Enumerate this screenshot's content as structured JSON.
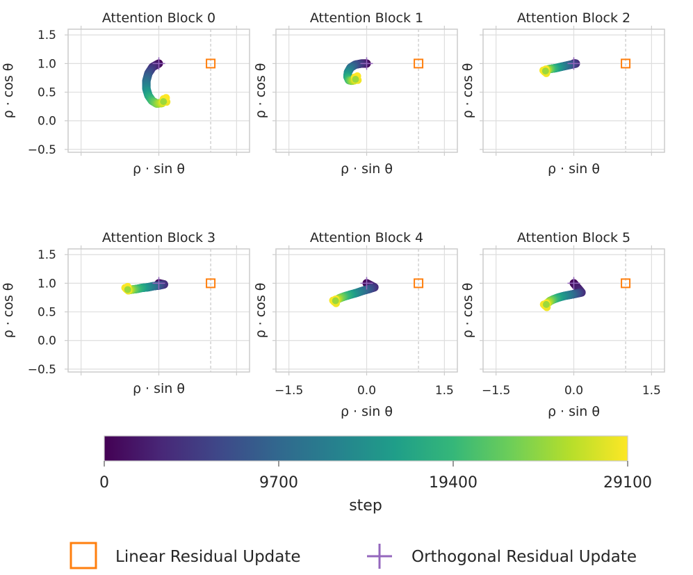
{
  "chart_data": {
    "type": "scatter",
    "figure_layout": "2x3 grid of subplots sharing axes",
    "xlabel": "ρ · sin θ",
    "ylabel": "ρ · cos θ",
    "xlim": [
      -1.75,
      1.75
    ],
    "ylim": [
      -0.55,
      1.6
    ],
    "xticks": [
      -1.5,
      0.0,
      1.5
    ],
    "xtick_labels": [
      "−1.5",
      "0.0",
      "1.5"
    ],
    "yticks": [
      -0.5,
      0.0,
      0.5,
      1.0,
      1.5
    ],
    "ytick_labels": [
      "−0.5",
      "0.0",
      "0.5",
      "1.0",
      "1.5"
    ],
    "grid": true,
    "reference_line_x": 1.0,
    "panels": [
      {
        "title": "Attention Block 0",
        "show_xticks": false,
        "show_yticks": true,
        "trajectory": [
          [
            0.0,
            1.0
          ],
          [
            -0.12,
            0.94
          ],
          [
            -0.2,
            0.83
          ],
          [
            -0.24,
            0.7
          ],
          [
            -0.24,
            0.56
          ],
          [
            -0.2,
            0.44
          ],
          [
            -0.13,
            0.35
          ],
          [
            -0.04,
            0.3
          ],
          [
            0.06,
            0.31
          ],
          [
            0.12,
            0.36
          ]
        ]
      },
      {
        "title": "Attention Block 1",
        "show_xticks": false,
        "show_yticks": false,
        "trajectory": [
          [
            0.0,
            1.0
          ],
          [
            -0.1,
            1.0
          ],
          [
            -0.22,
            0.98
          ],
          [
            -0.31,
            0.93
          ],
          [
            -0.36,
            0.85
          ],
          [
            -0.37,
            0.77
          ],
          [
            -0.34,
            0.71
          ],
          [
            -0.29,
            0.7
          ],
          [
            -0.23,
            0.71
          ],
          [
            -0.2,
            0.74
          ]
        ]
      },
      {
        "title": "Attention Block 2",
        "show_xticks": false,
        "show_yticks": false,
        "trajectory": [
          [
            0.0,
            1.0
          ],
          [
            0.04,
            1.0
          ],
          [
            -0.06,
            0.98
          ],
          [
            -0.16,
            0.96
          ],
          [
            -0.26,
            0.94
          ],
          [
            -0.35,
            0.92
          ],
          [
            -0.43,
            0.91
          ],
          [
            -0.49,
            0.9
          ],
          [
            -0.53,
            0.88
          ],
          [
            -0.56,
            0.86
          ]
        ]
      },
      {
        "title": "Attention Block 3",
        "show_xticks": false,
        "show_yticks": true,
        "trajectory": [
          [
            0.0,
            1.0
          ],
          [
            0.1,
            0.98
          ],
          [
            0.0,
            0.96
          ],
          [
            -0.1,
            0.95
          ],
          [
            -0.21,
            0.93
          ],
          [
            -0.32,
            0.92
          ],
          [
            -0.43,
            0.9
          ],
          [
            -0.52,
            0.89
          ],
          [
            -0.58,
            0.88
          ],
          [
            -0.62,
            0.9
          ]
        ]
      },
      {
        "title": "Attention Block 4",
        "show_xticks": true,
        "show_yticks": false,
        "trajectory": [
          [
            0.0,
            1.0
          ],
          [
            0.15,
            0.93
          ],
          [
            0.05,
            0.9
          ],
          [
            -0.07,
            0.87
          ],
          [
            -0.2,
            0.83
          ],
          [
            -0.32,
            0.8
          ],
          [
            -0.43,
            0.77
          ],
          [
            -0.52,
            0.74
          ],
          [
            -0.58,
            0.71
          ],
          [
            -0.62,
            0.68
          ]
        ]
      },
      {
        "title": "Attention Block 5",
        "show_xticks": true,
        "show_yticks": false,
        "trajectory": [
          [
            0.0,
            1.0
          ],
          [
            0.15,
            0.84
          ],
          [
            0.05,
            0.82
          ],
          [
            -0.06,
            0.8
          ],
          [
            -0.18,
            0.78
          ],
          [
            -0.3,
            0.75
          ],
          [
            -0.39,
            0.72
          ],
          [
            -0.46,
            0.69
          ],
          [
            -0.51,
            0.65
          ],
          [
            -0.55,
            0.61
          ]
        ]
      }
    ],
    "markers": {
      "linear": {
        "name": "Linear Residual Update",
        "x": 1.0,
        "y": 1.0,
        "shape": "square",
        "color": "#ff7f0e"
      },
      "orthogonal": {
        "name": "Orthogonal Residual Update",
        "x": 0.0,
        "y": 1.0,
        "shape": "plus",
        "color": "#9467bd"
      }
    },
    "colorbar": {
      "label": "step",
      "colormap": "viridis",
      "range": [
        0,
        29100
      ],
      "ticks": [
        0,
        9700,
        19400,
        29100
      ],
      "tick_labels": [
        "0",
        "9700",
        "19400",
        "29100"
      ],
      "stops": [
        "#440154",
        "#482878",
        "#3e4989",
        "#31688e",
        "#26828e",
        "#1f9e89",
        "#35b779",
        "#6ece58",
        "#b5de2b",
        "#fde725"
      ]
    },
    "legend": {
      "placement": "bottom",
      "entries": [
        {
          "label": "Linear Residual Update",
          "marker": "square",
          "color": "#ff7f0e"
        },
        {
          "label": "Orthogonal Residual Update",
          "marker": "plus",
          "color": "#9467bd"
        }
      ]
    }
  }
}
